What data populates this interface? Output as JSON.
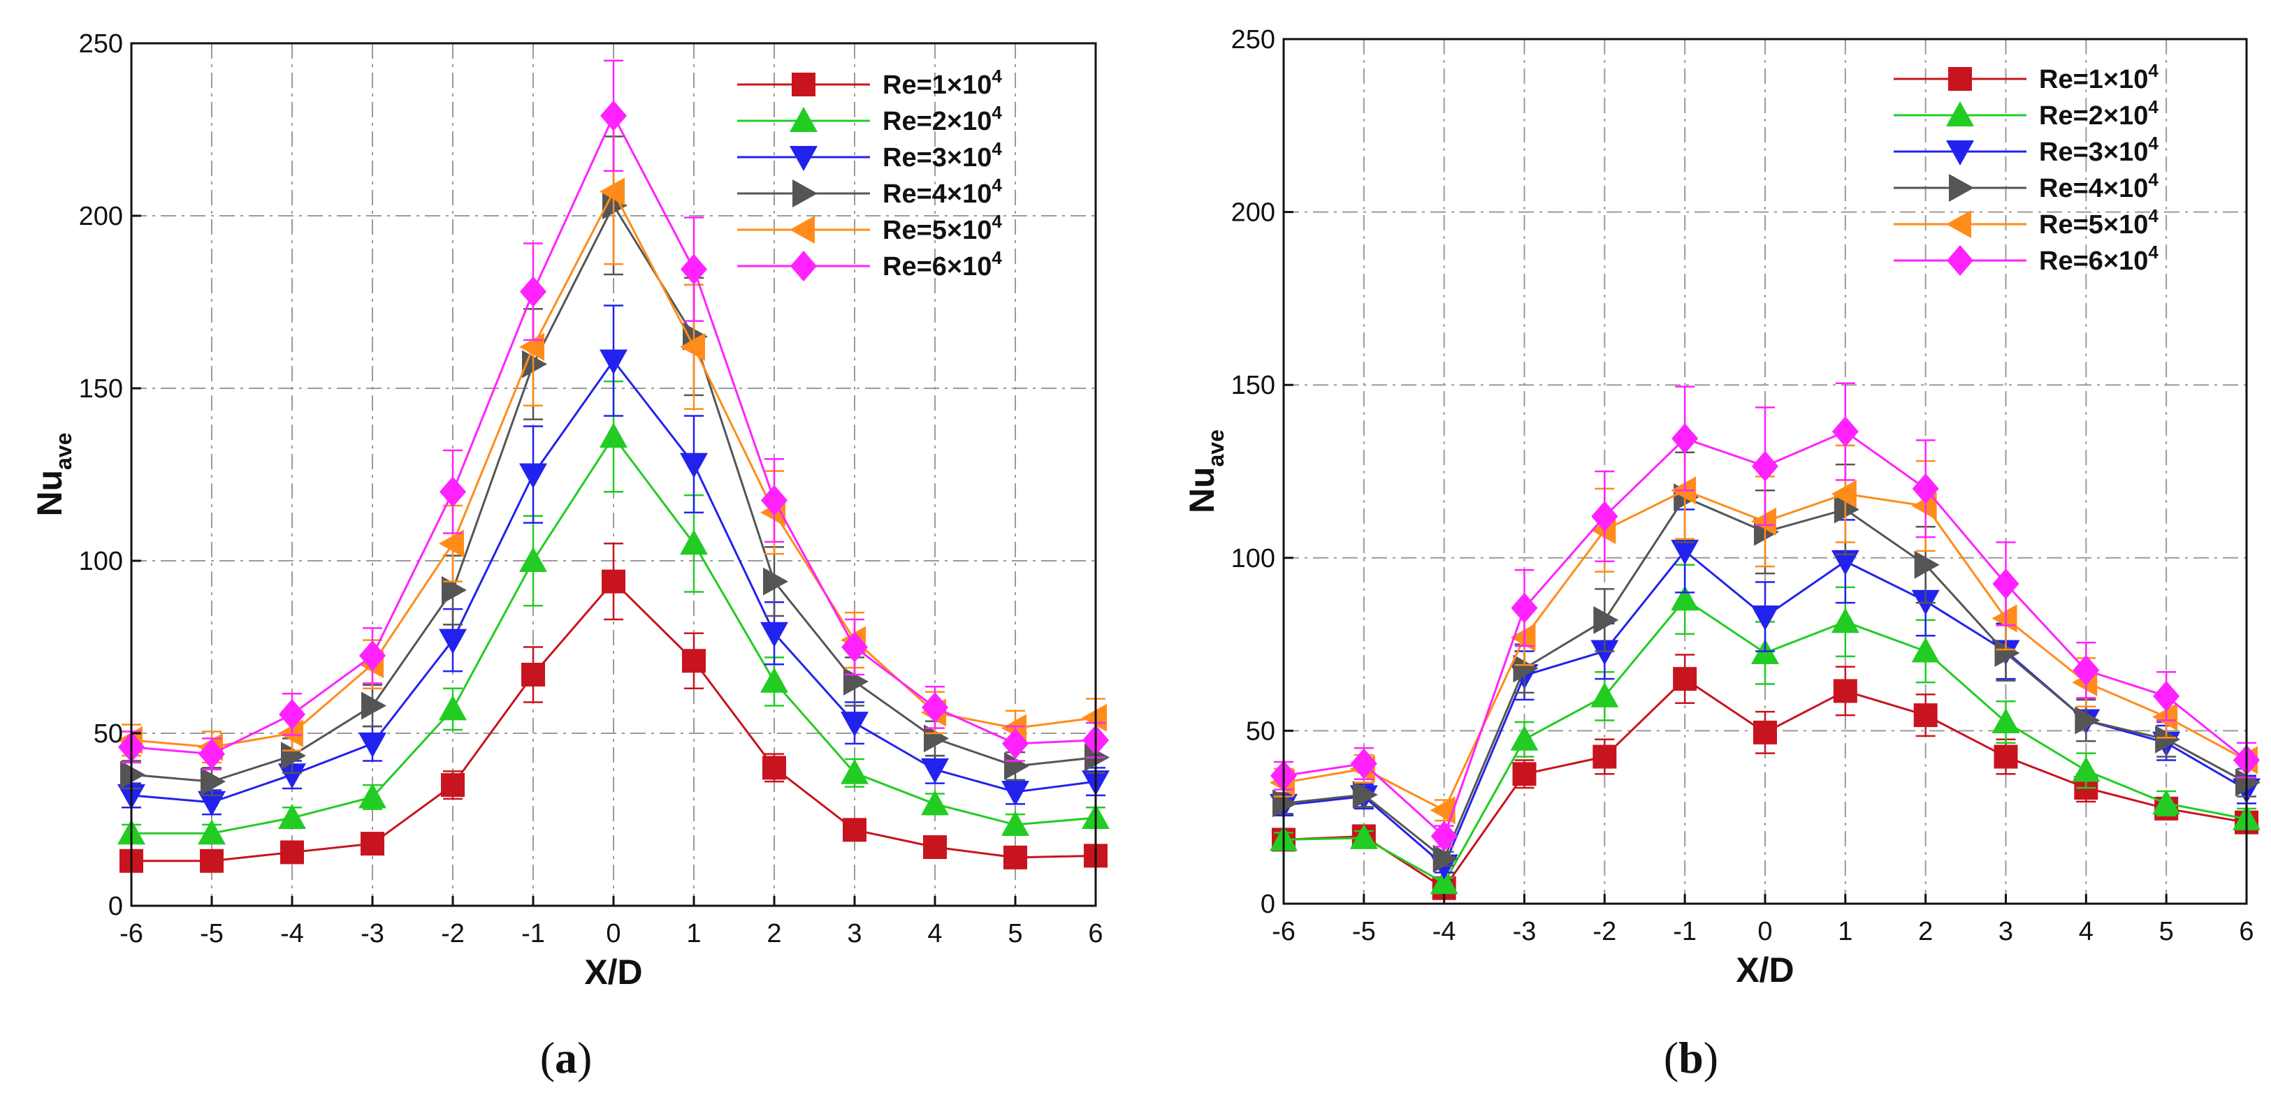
{
  "figure": {
    "panel_a_label": "a",
    "panel_b_label": "b"
  },
  "colors": {
    "Re1": "#c8141e",
    "Re2": "#22cc22",
    "Re3": "#2222ee",
    "Re4": "#555555",
    "Re5": "#ff8c1a",
    "Re6": "#ff22ff"
  },
  "chart_data": [
    {
      "type": "line",
      "panel": "a",
      "title": "",
      "xlabel": "X/D",
      "ylabel_main": "Nu",
      "ylabel_sub": "ave",
      "xlim": [
        -6,
        6
      ],
      "ylim": [
        0,
        250
      ],
      "xticks": [
        -6,
        -5,
        -4,
        -3,
        -2,
        -1,
        0,
        1,
        2,
        3,
        4,
        5,
        6
      ],
      "yticks": [
        0,
        50,
        100,
        150,
        200,
        250
      ],
      "grid": true,
      "legend_position": "top-right",
      "x": [
        -6,
        -5,
        -4,
        -3,
        -2,
        -1,
        0,
        1,
        2,
        3,
        4,
        5,
        6
      ],
      "series": [
        {
          "name": "Re=1×10",
          "sup": "4",
          "color": "#c8141e",
          "marker": "square",
          "values": [
            13,
            13,
            15.5,
            18,
            35,
            67,
            94,
            71,
            40,
            22,
            17,
            14,
            14.5
          ],
          "errors": [
            2,
            2,
            2,
            2.5,
            4,
            8,
            11,
            8,
            4,
            2,
            2,
            2,
            2
          ]
        },
        {
          "name": "Re=2×10",
          "sup": "4",
          "color": "#22cc22",
          "marker": "triangle-up",
          "values": [
            21,
            21,
            25.5,
            31.5,
            57,
            100,
            136,
            105,
            65,
            38.5,
            29.5,
            23.5,
            25.5
          ],
          "errors": [
            2.5,
            2.5,
            3,
            3.5,
            6,
            13,
            16,
            14,
            7,
            4,
            3,
            3,
            3
          ]
        },
        {
          "name": "Re=3×10",
          "sup": "4",
          "color": "#2222ee",
          "marker": "triangle-down",
          "values": [
            32,
            30,
            38,
            47,
            77,
            125,
            158,
            128,
            79,
            53,
            39.5,
            33,
            36
          ],
          "errors": [
            3.5,
            3.5,
            4,
            5,
            9,
            14,
            16,
            14,
            9,
            6,
            4,
            3.5,
            4
          ]
        },
        {
          "name": "Re=4×10",
          "sup": "4",
          "color": "#555555",
          "marker": "triangle-right",
          "values": [
            38,
            36,
            43.5,
            58,
            91.5,
            157,
            203,
            165,
            94,
            65,
            48.5,
            40.5,
            43
          ],
          "errors": [
            4,
            4,
            5,
            6,
            10,
            16,
            20,
            17,
            10,
            7,
            5,
            4,
            4.5
          ]
        },
        {
          "name": "Re=5×10",
          "sup": "4",
          "color": "#ff8c1a",
          "marker": "triangle-left",
          "values": [
            48,
            46,
            50,
            70,
            105,
            162,
            207,
            162,
            114,
            77,
            56,
            51.5,
            54.5
          ],
          "errors": [
            4.5,
            4.5,
            5,
            7,
            11,
            17,
            21,
            18,
            12,
            8,
            6,
            5,
            5.5
          ]
        },
        {
          "name": "Re=6×10",
          "sup": "4",
          "color": "#ff22ff",
          "marker": "diamond",
          "values": [
            46,
            44,
            55.5,
            72.5,
            120,
            178,
            229,
            184.5,
            117.5,
            75,
            57.5,
            47,
            48
          ],
          "errors": [
            4.5,
            4.5,
            6,
            8,
            12,
            14,
            16,
            15,
            12,
            8,
            6,
            5,
            5
          ]
        }
      ]
    },
    {
      "type": "line",
      "panel": "b",
      "title": "",
      "xlabel": "X/D",
      "ylabel_main": "Nu",
      "ylabel_sub": "ave",
      "xlim": [
        -6,
        6
      ],
      "ylim": [
        0,
        250
      ],
      "xticks": [
        -6,
        -5,
        -4,
        -3,
        -2,
        -1,
        0,
        1,
        2,
        3,
        4,
        5,
        6
      ],
      "yticks": [
        0,
        50,
        100,
        150,
        200,
        250
      ],
      "grid": true,
      "legend_position": "top-right",
      "x": [
        -6,
        -5,
        -4,
        -3,
        -2,
        -1,
        0,
        1,
        2,
        3,
        4,
        5,
        6
      ],
      "series": [
        {
          "name": "Re=1×10",
          "sup": "4",
          "color": "#c8141e",
          "marker": "square",
          "values": [
            18.5,
            19.5,
            4.5,
            37.5,
            42.5,
            65,
            49.5,
            61.5,
            54.5,
            42.5,
            33.5,
            27.5,
            23.5
          ],
          "errors": [
            2,
            2,
            1.5,
            4,
            5,
            7,
            6,
            7,
            6,
            5,
            4,
            3,
            3
          ]
        },
        {
          "name": "Re=2×10",
          "sup": "4",
          "color": "#22cc22",
          "marker": "triangle-up",
          "values": [
            18.5,
            19,
            6,
            47.5,
            60,
            88,
            72.5,
            81.5,
            73,
            52.5,
            38.5,
            29,
            24.5
          ],
          "errors": [
            2,
            2,
            1.5,
            5,
            7,
            10,
            9,
            10,
            9,
            6,
            5,
            3.5,
            3
          ]
        },
        {
          "name": "Re=3×10",
          "sup": "4",
          "color": "#2222ee",
          "marker": "triangle-down",
          "values": [
            28.5,
            31,
            11,
            66,
            73,
            102,
            83,
            99,
            87.5,
            73,
            53,
            46.5,
            33
          ],
          "errors": [
            3,
            3.5,
            2,
            7,
            8,
            12,
            10,
            12,
            10,
            8,
            6,
            5,
            4
          ]
        },
        {
          "name": "Re=4×10",
          "sup": "4",
          "color": "#555555",
          "marker": "triangle-right",
          "values": [
            29,
            31.5,
            13,
            68,
            82,
            117.5,
            107.5,
            114,
            98,
            72.5,
            53,
            47.5,
            35
          ],
          "errors": [
            3,
            3.5,
            2,
            7,
            9,
            13,
            12,
            13,
            11,
            8,
            6,
            5,
            4
          ]
        },
        {
          "name": "Re=5×10",
          "sup": "4",
          "color": "#ff8c1a",
          "marker": "triangle-left",
          "values": [
            35,
            39,
            27,
            77,
            108,
            119.5,
            110.5,
            118.5,
            115,
            82.5,
            64,
            54,
            41.5
          ],
          "errors": [
            4,
            4,
            3,
            8,
            12,
            14,
            13,
            14,
            13,
            9,
            7,
            6,
            5
          ]
        },
        {
          "name": "Re=6×10",
          "sup": "4",
          "color": "#ff22ff",
          "marker": "diamond",
          "values": [
            37,
            40.5,
            19.5,
            85.5,
            112,
            134.5,
            126.5,
            136.5,
            120,
            92.5,
            67.5,
            60,
            41.5
          ],
          "errors": [
            4,
            4.5,
            3,
            11,
            13,
            15,
            17,
            14,
            14,
            12,
            8,
            7,
            5
          ]
        }
      ]
    }
  ]
}
